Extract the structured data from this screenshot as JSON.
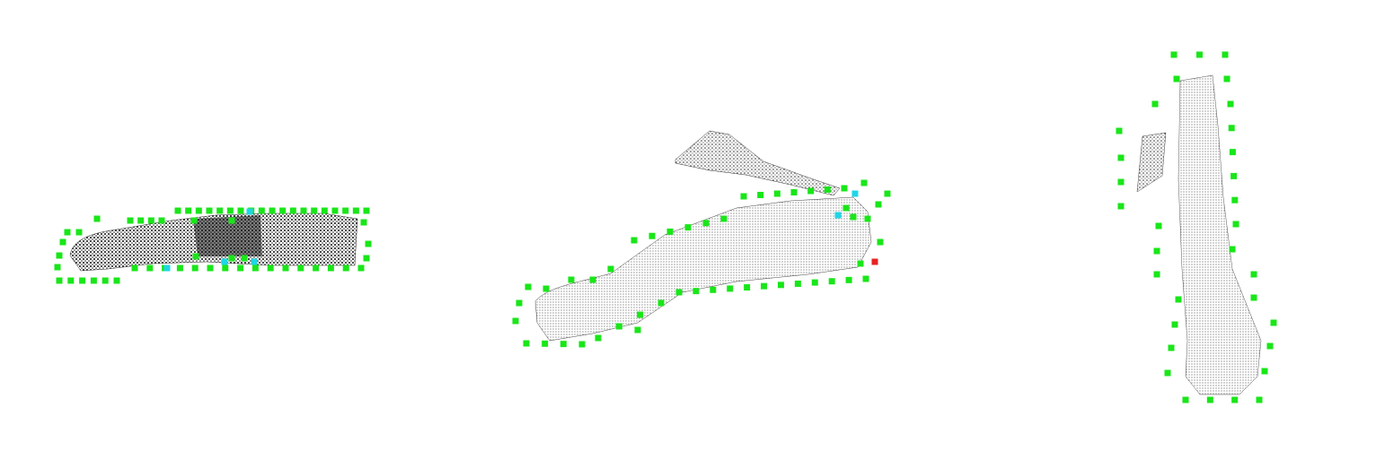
{
  "colors": {
    "background": "#ffffff",
    "point_cloud": "#1a1a1a",
    "outline_marker": "#19e619",
    "keypoint_marker": "#1fd6e6",
    "highlight_marker": "#e62222"
  },
  "views": [
    {
      "name": "view-left-horizontal-limb",
      "shape": "elongated horizontal point cloud with green boundary markers"
    },
    {
      "name": "view-center-bent-limb",
      "shape": "bent point cloud forming an angle with green boundary markers and one red marker"
    },
    {
      "name": "view-right-vertical-limb",
      "shape": "vertical point cloud with green boundary markers"
    }
  ]
}
